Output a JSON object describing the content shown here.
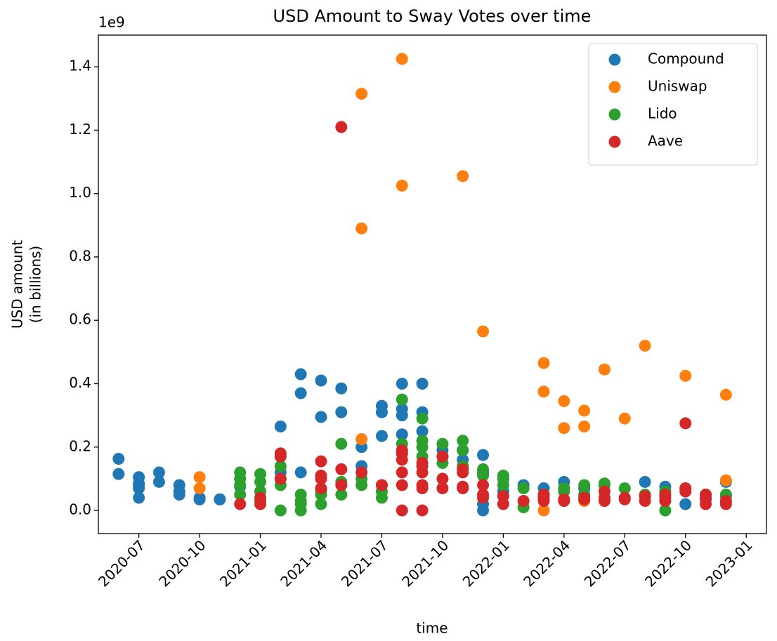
{
  "chart_data": {
    "type": "scatter",
    "title": "USD Amount to Sway Votes over time",
    "xlabel": "time",
    "ylabel": [
      "USD amount",
      "(in billions)"
    ],
    "y_offset_label": "1e9",
    "xlim": [
      "2020-05",
      "2023-02"
    ],
    "xticks": [
      "2020-07",
      "2020-10",
      "2021-01",
      "2021-04",
      "2021-07",
      "2021-10",
      "2022-01",
      "2022-04",
      "2022-07",
      "2022-10",
      "2023-01"
    ],
    "ylim": [
      -0.073,
      1.5
    ],
    "yticks": [
      {
        "value": 0,
        "label": "0.0"
      },
      0.2,
      0.4,
      0.6,
      0.8,
      {
        "value": 1,
        "label": "1.0"
      },
      1.2,
      1.4
    ],
    "legend": "upper right",
    "series": [
      {
        "name": "Compound",
        "color": "#1f77b4",
        "x": [
          "2020-06",
          "2020-06",
          "2020-07",
          "2020-07",
          "2020-07",
          "2020-07",
          "2020-07",
          "2020-08",
          "2020-08",
          "2020-09",
          "2020-09",
          "2020-09",
          "2020-10",
          "2020-10",
          "2020-11",
          "2020-11",
          "2020-12",
          "2020-12",
          "2021-01",
          "2021-02",
          "2021-02",
          "2021-03",
          "2021-03",
          "2021-03",
          "2021-04",
          "2021-04",
          "2021-05",
          "2021-05",
          "2021-06",
          "2021-06",
          "2021-07",
          "2021-07",
          "2021-07",
          "2021-08",
          "2021-08",
          "2021-08",
          "2021-08",
          "2021-09",
          "2021-09",
          "2021-09",
          "2021-10",
          "2021-10",
          "2021-11",
          "2021-11",
          "2021-12",
          "2021-12",
          "2021-12",
          "2021-12",
          "2022-01",
          "2022-01",
          "2022-02",
          "2022-03",
          "2022-04",
          "2022-04",
          "2022-05",
          "2022-08",
          "2022-09",
          "2022-10",
          "2022-11",
          "2022-12",
          "2022-12"
        ],
        "values": [
          0.163,
          0.115,
          0.105,
          0.08,
          0.04,
          0.07,
          0.085,
          0.09,
          0.12,
          0.08,
          0.05,
          0.06,
          0.035,
          0.04,
          0.035,
          0.035,
          0.1,
          0.075,
          0.06,
          0.12,
          0.265,
          0.37,
          0.43,
          0.12,
          0.295,
          0.41,
          0.31,
          0.385,
          0.2,
          0.14,
          0.31,
          0.33,
          0.235,
          0.32,
          0.4,
          0.3,
          0.24,
          0.4,
          0.25,
          0.31,
          0.19,
          0.17,
          0.19,
          0.16,
          0.12,
          0.175,
          0.0,
          0.02,
          0.06,
          0.1,
          0.08,
          0.07,
          0.09,
          0.07,
          0.07,
          0.09,
          0.075,
          0.02,
          0.035,
          0.09,
          0.045
        ]
      },
      {
        "name": "Uniswap",
        "color": "#ff7f0e",
        "x": [
          "2020-10",
          "2020-10",
          "2021-06",
          "2021-06",
          "2021-06",
          "2021-08",
          "2021-08",
          "2021-11",
          "2021-12",
          "2022-03",
          "2022-03",
          "2022-03",
          "2022-04",
          "2022-04",
          "2022-05",
          "2022-05",
          "2022-05",
          "2022-06",
          "2022-07",
          "2022-08",
          "2022-10",
          "2022-12",
          "2022-12"
        ],
        "values": [
          0.105,
          0.07,
          1.315,
          0.225,
          0.89,
          1.425,
          1.025,
          1.055,
          0.565,
          0.465,
          0.375,
          0.0,
          0.26,
          0.345,
          0.315,
          0.265,
          0.03,
          0.445,
          0.29,
          0.52,
          0.425,
          0.095,
          0.365
        ]
      },
      {
        "name": "Lido",
        "color": "#2ca02c",
        "x": [
          "2020-12",
          "2020-12",
          "2020-12",
          "2020-12",
          "2021-01",
          "2021-01",
          "2021-01",
          "2021-01",
          "2021-02",
          "2021-02",
          "2021-02",
          "2021-02",
          "2021-03",
          "2021-03",
          "2021-03",
          "2021-03",
          "2021-04",
          "2021-04",
          "2021-04",
          "2021-05",
          "2021-05",
          "2021-05",
          "2021-06",
          "2021-06",
          "2021-07",
          "2021-07",
          "2021-07",
          "2021-08",
          "2021-08",
          "2021-08",
          "2021-09",
          "2021-09",
          "2021-09",
          "2021-09",
          "2021-10",
          "2021-10",
          "2021-11",
          "2021-11",
          "2021-11",
          "2021-12",
          "2021-12",
          "2021-12",
          "2022-01",
          "2022-01",
          "2022-01",
          "2022-02",
          "2022-02",
          "2022-03",
          "2022-04",
          "2022-04",
          "2022-05",
          "2022-05",
          "2022-06",
          "2022-06",
          "2022-07",
          "2022-08",
          "2022-09",
          "2022-09",
          "2022-10",
          "2022-11",
          "2022-12"
        ],
        "values": [
          0.12,
          0.1,
          0.08,
          0.05,
          0.115,
          0.09,
          0.06,
          0.03,
          0.0,
          0.14,
          0.1,
          0.08,
          0.05,
          0.03,
          0.02,
          0.0,
          0.05,
          0.02,
          0.06,
          0.21,
          0.09,
          0.05,
          0.1,
          0.08,
          0.06,
          0.04,
          0.08,
          0.18,
          0.21,
          0.35,
          0.29,
          0.22,
          0.2,
          0.17,
          0.21,
          0.15,
          0.22,
          0.19,
          0.14,
          0.13,
          0.11,
          0.12,
          0.11,
          0.1,
          0.08,
          0.07,
          0.01,
          0.05,
          0.07,
          0.06,
          0.08,
          0.05,
          0.08,
          0.085,
          0.07,
          0.05,
          0.0,
          0.06,
          0.07,
          0.05,
          0.05
        ]
      },
      {
        "name": "Aave",
        "color": "#d62728",
        "x": [
          "2020-12",
          "2021-01",
          "2021-01",
          "2021-02",
          "2021-02",
          "2021-02",
          "2021-04",
          "2021-04",
          "2021-04",
          "2021-04",
          "2021-05",
          "2021-05",
          "2021-05",
          "2021-06",
          "2021-07",
          "2021-08",
          "2021-08",
          "2021-08",
          "2021-08",
          "2021-08",
          "2021-08",
          "2021-09",
          "2021-09",
          "2021-09",
          "2021-09",
          "2021-09",
          "2021-09",
          "2021-10",
          "2021-10",
          "2021-10",
          "2021-11",
          "2021-11",
          "2021-11",
          "2021-11",
          "2021-12",
          "2021-12",
          "2021-12",
          "2022-01",
          "2022-01",
          "2022-02",
          "2022-03",
          "2022-03",
          "2022-03",
          "2022-04",
          "2022-04",
          "2022-05",
          "2022-05",
          "2022-06",
          "2022-06",
          "2022-06",
          "2022-07",
          "2022-07",
          "2022-08",
          "2022-08",
          "2022-09",
          "2022-09",
          "2022-09",
          "2022-10",
          "2022-10",
          "2022-10",
          "2022-11",
          "2022-11",
          "2022-11",
          "2022-12",
          "2022-12"
        ],
        "values": [
          0.02,
          0.02,
          0.04,
          0.1,
          0.17,
          0.18,
          0.11,
          0.07,
          0.1,
          0.155,
          1.21,
          0.13,
          0.08,
          0.12,
          0.08,
          0.08,
          0.18,
          0.19,
          0.0,
          0.12,
          0.16,
          0.07,
          0.15,
          0.14,
          0.12,
          0.0,
          0.08,
          0.07,
          0.1,
          0.17,
          0.13,
          0.075,
          0.07,
          0.12,
          0.08,
          0.05,
          0.04,
          0.02,
          0.045,
          0.03,
          0.05,
          0.04,
          0.03,
          0.03,
          0.035,
          0.04,
          0.035,
          0.04,
          0.06,
          0.03,
          0.035,
          0.04,
          0.045,
          0.03,
          0.05,
          0.04,
          0.03,
          0.275,
          0.07,
          0.06,
          0.05,
          0.04,
          0.02,
          0.03,
          0.02
        ]
      }
    ]
  }
}
